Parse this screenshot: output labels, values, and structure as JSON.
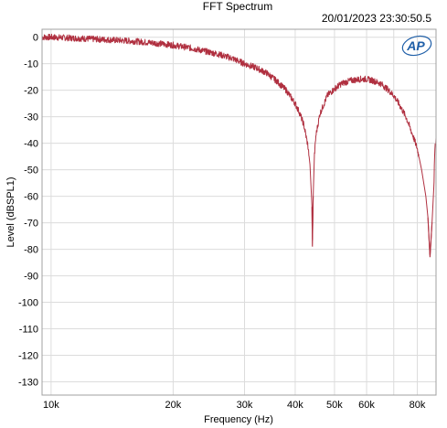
{
  "chart_data": {
    "type": "line",
    "title": "FFT Spectrum",
    "timestamp": "20/01/2023 23:30:50.5",
    "xlabel": "Frequency (Hz)",
    "ylabel": "Level (dBSPL1)",
    "x_scale": "log",
    "xlim": [
      9500,
      89000
    ],
    "ylim": [
      -135,
      3
    ],
    "grid": true,
    "x_ticks": [
      {
        "value": 10000,
        "label": "10k"
      },
      {
        "value": 20000,
        "label": "20k"
      },
      {
        "value": 30000,
        "label": "30k"
      },
      {
        "value": 40000,
        "label": "40k"
      },
      {
        "value": 50000,
        "label": "50k"
      },
      {
        "value": 60000,
        "label": "60k"
      },
      {
        "value": 80000,
        "label": "80k"
      }
    ],
    "y_ticks": [
      0,
      -10,
      -20,
      -30,
      -40,
      -50,
      -60,
      -70,
      -80,
      -90,
      -100,
      -110,
      -120,
      -130
    ],
    "logo": "AP",
    "series": [
      {
        "color": "#b03040",
        "x": [
          9500,
          10000,
          12000,
          14000,
          16000,
          18000,
          20000,
          22000,
          24000,
          26000,
          28000,
          30000,
          32000,
          34000,
          36000,
          38000,
          40000,
          41000,
          42000,
          43000,
          43500,
          44000,
          44100,
          44300,
          44600,
          45000,
          46000,
          48000,
          50000,
          52000,
          55000,
          58000,
          60000,
          62000,
          65000,
          68000,
          70000,
          72000,
          75000,
          78000,
          80000,
          82000,
          84000,
          85000,
          86000,
          87000,
          88000,
          88200,
          88500,
          89000
        ],
        "y": [
          0,
          0,
          -0.5,
          -1,
          -1.5,
          -2.2,
          -3,
          -4,
          -5.3,
          -6.5,
          -8,
          -10,
          -11.5,
          -13.5,
          -16.5,
          -20,
          -25,
          -28.5,
          -33,
          -41,
          -48,
          -64,
          -79,
          -60,
          -45,
          -37,
          -29,
          -22,
          -19.5,
          -17.5,
          -16.3,
          -15.8,
          -15.8,
          -16.3,
          -17.5,
          -20,
          -22,
          -25,
          -30,
          -37,
          -42,
          -50,
          -60,
          -68,
          -83,
          -70,
          -55,
          -46,
          -40,
          -39
        ]
      }
    ]
  }
}
